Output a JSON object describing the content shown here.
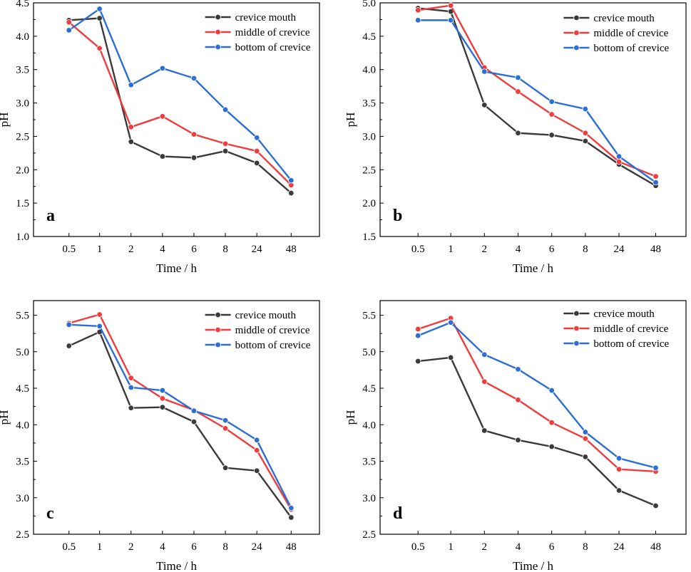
{
  "chart_data": [
    {
      "type": "line",
      "panel": "a",
      "xlabel": "Time / h",
      "ylabel": "pH",
      "categories": [
        "0.5",
        "1",
        "2",
        "4",
        "6",
        "8",
        "24",
        "48"
      ],
      "ylim": [
        1.0,
        4.5
      ],
      "yticks": [
        "1.0",
        "1.5",
        "2.0",
        "2.5",
        "3.0",
        "3.5",
        "4.0",
        "4.5"
      ],
      "legend_position": "top-right",
      "series": [
        {
          "name": "crevice mouth",
          "color": "#3a3a3a",
          "values": [
            4.24,
            4.27,
            2.42,
            2.2,
            2.18,
            2.28,
            2.1,
            1.65
          ]
        },
        {
          "name": "middle of crevice",
          "color": "#f03c3c",
          "values": [
            4.21,
            3.82,
            2.64,
            2.8,
            2.53,
            2.39,
            2.28,
            1.77
          ]
        },
        {
          "name": "bottom of crevice",
          "color": "#2b6fd6",
          "values": [
            4.09,
            4.41,
            3.27,
            3.52,
            3.37,
            2.9,
            2.48,
            1.84
          ]
        }
      ]
    },
    {
      "type": "line",
      "panel": "b",
      "xlabel": "Time / h",
      "ylabel": "pH",
      "categories": [
        "0.5",
        "1",
        "2",
        "4",
        "6",
        "8",
        "24",
        "48"
      ],
      "ylim": [
        1.5,
        5.0
      ],
      "yticks": [
        "1.5",
        "2.0",
        "2.5",
        "3.0",
        "3.5",
        "4.0",
        "4.5",
        "5.0"
      ],
      "legend_position": "top-right",
      "series": [
        {
          "name": "crevice mouth",
          "color": "#3a3a3a",
          "values": [
            4.92,
            4.87,
            3.47,
            3.05,
            3.02,
            2.93,
            2.58,
            2.26
          ]
        },
        {
          "name": "middle of crevice",
          "color": "#f03c3c",
          "values": [
            4.89,
            4.96,
            4.03,
            3.67,
            3.33,
            3.05,
            2.62,
            2.4
          ]
        },
        {
          "name": "bottom of crevice",
          "color": "#2b6fd6",
          "values": [
            4.74,
            4.74,
            3.97,
            3.88,
            3.52,
            3.41,
            2.7,
            2.31
          ]
        }
      ]
    },
    {
      "type": "line",
      "panel": "c",
      "xlabel": "Time / h",
      "ylabel": "pH",
      "categories": [
        "0.5",
        "1",
        "2",
        "4",
        "6",
        "8",
        "24",
        "48"
      ],
      "ylim": [
        2.5,
        5.7
      ],
      "yticks": [
        "2.5",
        "3.0",
        "3.5",
        "4.0",
        "4.5",
        "5.0",
        "5.5"
      ],
      "legend_position": "top-right",
      "series": [
        {
          "name": "crevice mouth",
          "color": "#3a3a3a",
          "values": [
            5.08,
            5.27,
            4.23,
            4.24,
            4.04,
            3.41,
            3.37,
            2.73
          ]
        },
        {
          "name": "middle of crevice",
          "color": "#f03c3c",
          "values": [
            5.39,
            5.51,
            4.64,
            4.36,
            4.2,
            3.95,
            3.65,
            2.84
          ]
        },
        {
          "name": "bottom of crevice",
          "color": "#2b6fd6",
          "values": [
            5.37,
            5.35,
            4.51,
            4.47,
            4.19,
            4.06,
            3.79,
            2.86
          ]
        }
      ]
    },
    {
      "type": "line",
      "panel": "d",
      "xlabel": "Time / h",
      "ylabel": "pH",
      "categories": [
        "0.5",
        "1",
        "2",
        "4",
        "6",
        "8",
        "24",
        "48"
      ],
      "ylim": [
        2.5,
        5.7
      ],
      "yticks": [
        "2.5",
        "3.0",
        "3.5",
        "4.0",
        "4.5",
        "5.0",
        "5.5"
      ],
      "legend_position": "top-right",
      "series": [
        {
          "name": "crevice mouth",
          "color": "#3a3a3a",
          "values": [
            4.87,
            4.92,
            3.92,
            3.79,
            3.7,
            3.56,
            3.1,
            2.89
          ]
        },
        {
          "name": "middle of crevice",
          "color": "#f03c3c",
          "values": [
            5.31,
            5.46,
            4.59,
            4.34,
            4.03,
            3.81,
            3.39,
            3.36
          ]
        },
        {
          "name": "bottom of crevice",
          "color": "#2b6fd6",
          "values": [
            5.22,
            5.4,
            4.96,
            4.76,
            4.47,
            3.9,
            3.54,
            3.41
          ]
        }
      ]
    }
  ]
}
